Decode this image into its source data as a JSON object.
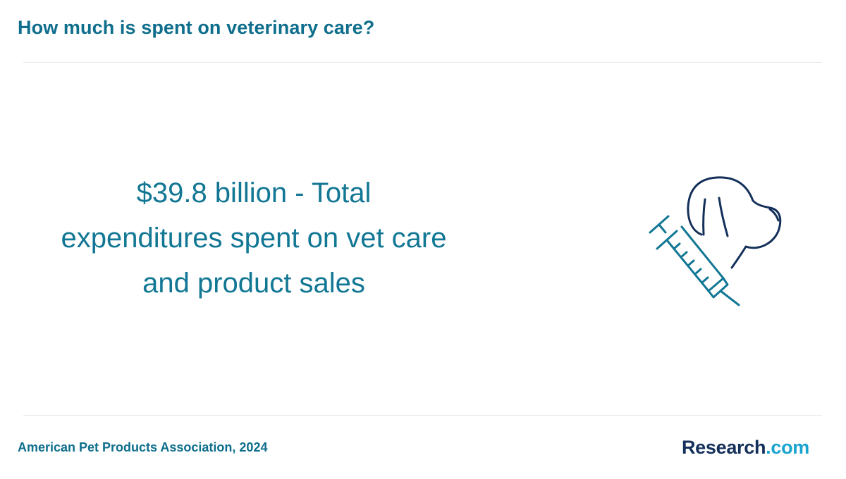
{
  "header": {
    "title": "How much is spent on veterinary care?"
  },
  "stat": {
    "line1": "$39.8 billion - Total",
    "line2": "expenditures spent on vet care",
    "line3": "and product sales"
  },
  "illustration": {
    "icon": "dog-syringe-icon",
    "dog_color": "#14305a",
    "syringe_color": "#127794"
  },
  "footer": {
    "source": "American Pet Products Association, 2024",
    "logo_brand": "Research",
    "logo_dot": ".",
    "logo_tld": "com"
  },
  "colors": {
    "title": "#0e6e8c",
    "stat_text": "#127794",
    "logo_brand": "#14305a",
    "logo_accent": "#19a3cf"
  }
}
